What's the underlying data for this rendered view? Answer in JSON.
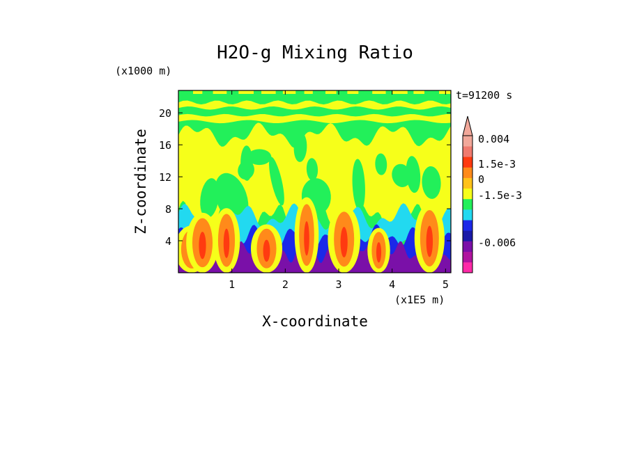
{
  "chart_data": {
    "type": "heatmap",
    "title": "H2O-g Mixing Ratio",
    "xlabel": "X-coordinate",
    "ylabel": "Z-coordinate",
    "x_unit": "(x1E5 m)",
    "y_unit": "(x1000 m)",
    "time_label": "t=91200 s",
    "xlim": [
      0,
      5.1
    ],
    "ylim": [
      0,
      22.8
    ],
    "x_ticks": [
      1,
      2,
      3,
      4,
      5
    ],
    "y_ticks": [
      4,
      8,
      12,
      16,
      20
    ],
    "colorbar": {
      "labels": [
        {
          "text": "0.004",
          "level": 0.004
        },
        {
          "text": "1.5e-3",
          "level": 0.0015
        },
        {
          "text": "0",
          "level": 0
        },
        {
          "text": "-1.5e-3",
          "level": -0.0015
        },
        {
          "text": "-0.006",
          "level": -0.006
        }
      ],
      "colors": [
        "#ff2aa8",
        "#b0149f",
        "#7a10a8",
        "#1a1aa8",
        "#1b28e8",
        "#22d9f0",
        "#22f05a",
        "#f6ff1a",
        "#ffc21a",
        "#ff8a1a",
        "#ff3a10",
        "#f07a6e",
        "#f2a89a"
      ]
    },
    "layers": [
      {
        "name": "violet",
        "color": "#7a10a8"
      },
      {
        "name": "blue",
        "color": "#1b28e8"
      },
      {
        "name": "cyan",
        "color": "#22d9f0"
      },
      {
        "name": "green",
        "color": "#22f05a"
      },
      {
        "name": "yellow",
        "color": "#f6ff1a"
      },
      {
        "name": "orange",
        "color": "#ff8a1a"
      }
    ]
  }
}
